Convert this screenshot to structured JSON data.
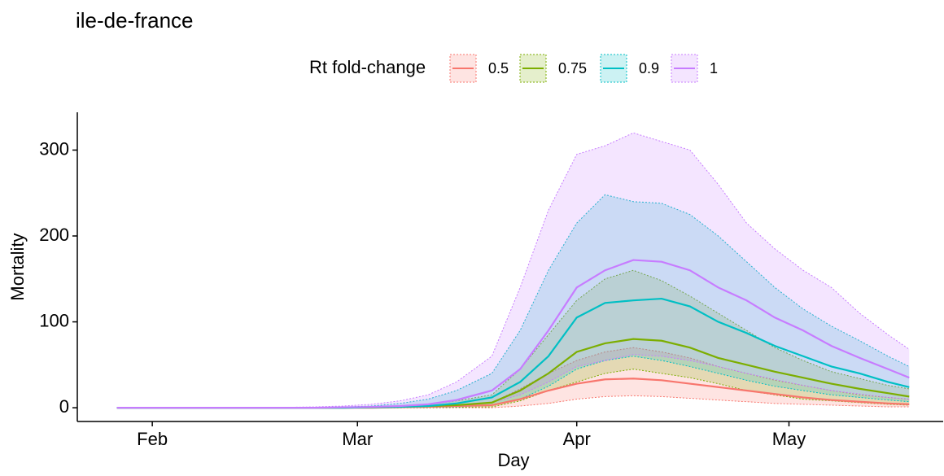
{
  "chart_data": {
    "type": "ribbon-line",
    "title": "ile-de-france",
    "x_label": "Day",
    "y_label": "Mortality",
    "legend_title": "Rt fold-change",
    "x": [
      27,
      31,
      35,
      39,
      43,
      47,
      51,
      55,
      59,
      63,
      67,
      71,
      75,
      80,
      84,
      88,
      92,
      96,
      100,
      104,
      108,
      112,
      116,
      120,
      124,
      128,
      132,
      136,
      139
    ],
    "xlim": [
      21.4,
      143.8
    ],
    "xticks": [
      {
        "value": 32,
        "label": "Feb"
      },
      {
        "value": 61,
        "label": "Mar"
      },
      {
        "value": 92,
        "label": "Apr"
      },
      {
        "value": 122,
        "label": "May"
      }
    ],
    "ylim": [
      -16,
      344
    ],
    "yticks": [
      0,
      100,
      200,
      300
    ],
    "series": [
      {
        "name": "0.5",
        "color": "#F8766D",
        "values": [
          0,
          0,
          0,
          0,
          0,
          0,
          0,
          0,
          0,
          0,
          0.5,
          1,
          2,
          3,
          10,
          20,
          28,
          33,
          34,
          32,
          28,
          24,
          20,
          16,
          12,
          9,
          7,
          5,
          4
        ],
        "lower": [
          0,
          0,
          0,
          0,
          0,
          0,
          0,
          0,
          0,
          0,
          0,
          0,
          0,
          0,
          2,
          5,
          10,
          13,
          14,
          13,
          11,
          9,
          7,
          5,
          4,
          3,
          2,
          1,
          1
        ],
        "upper": [
          0,
          0,
          0,
          0,
          0,
          0,
          0,
          0,
          0,
          0.5,
          1,
          2,
          3,
          6,
          22,
          40,
          55,
          65,
          70,
          65,
          58,
          48,
          40,
          32,
          26,
          20,
          15,
          12,
          10
        ]
      },
      {
        "name": "0.75",
        "color": "#7CAE00",
        "values": [
          0,
          0,
          0,
          0,
          0,
          0,
          0,
          0,
          0,
          0.5,
          1,
          2,
          3,
          6,
          20,
          40,
          65,
          75,
          80,
          78,
          70,
          58,
          50,
          42,
          35,
          28,
          22,
          17,
          13
        ],
        "lower": [
          0,
          0,
          0,
          0,
          0,
          0,
          0,
          0,
          0,
          0,
          0,
          0,
          0.5,
          1,
          8,
          20,
          30,
          40,
          45,
          40,
          35,
          28,
          20,
          15,
          10,
          8,
          6,
          4,
          3
        ],
        "upper": [
          0,
          0,
          0,
          0,
          0,
          0,
          0,
          0,
          0.5,
          1,
          2,
          4,
          8,
          15,
          45,
          85,
          125,
          150,
          160,
          148,
          130,
          110,
          90,
          70,
          55,
          42,
          34,
          26,
          22
        ]
      },
      {
        "name": "0.9",
        "color": "#00BFC4",
        "values": [
          0,
          0,
          0,
          0,
          0,
          0,
          0,
          0,
          0,
          0.5,
          1,
          2,
          5,
          12,
          30,
          60,
          105,
          122,
          125,
          127,
          118,
          100,
          87,
          72,
          60,
          48,
          40,
          30,
          24
        ],
        "lower": [
          0,
          0,
          0,
          0,
          0,
          0,
          0,
          0,
          0,
          0,
          0,
          0.5,
          1,
          3,
          10,
          25,
          45,
          55,
          60,
          55,
          48,
          40,
          32,
          25,
          20,
          15,
          12,
          9,
          7
        ],
        "upper": [
          0,
          0,
          0,
          0,
          0,
          0,
          0,
          0.5,
          1,
          2,
          5,
          10,
          20,
          40,
          90,
          160,
          215,
          248,
          240,
          238,
          225,
          200,
          170,
          140,
          115,
          95,
          78,
          60,
          48
        ]
      },
      {
        "name": "1",
        "color": "#C77CFF",
        "values": [
          0,
          0,
          0,
          0,
          0,
          0,
          0,
          0,
          0.5,
          1,
          2,
          4,
          9,
          20,
          45,
          90,
          140,
          160,
          172,
          170,
          160,
          140,
          125,
          105,
          90,
          72,
          58,
          45,
          35
        ],
        "lower": [
          0,
          0,
          0,
          0,
          0,
          0,
          0,
          0,
          0,
          0,
          0.5,
          1,
          3,
          6,
          15,
          30,
          48,
          55,
          62,
          60,
          55,
          48,
          40,
          33,
          26,
          20,
          16,
          12,
          10
        ],
        "upper": [
          0,
          0,
          0,
          0,
          0,
          0,
          0.5,
          1,
          2,
          4,
          8,
          15,
          30,
          60,
          140,
          230,
          295,
          305,
          320,
          310,
          300,
          260,
          215,
          185,
          160,
          140,
          110,
          85,
          68
        ]
      }
    ]
  }
}
